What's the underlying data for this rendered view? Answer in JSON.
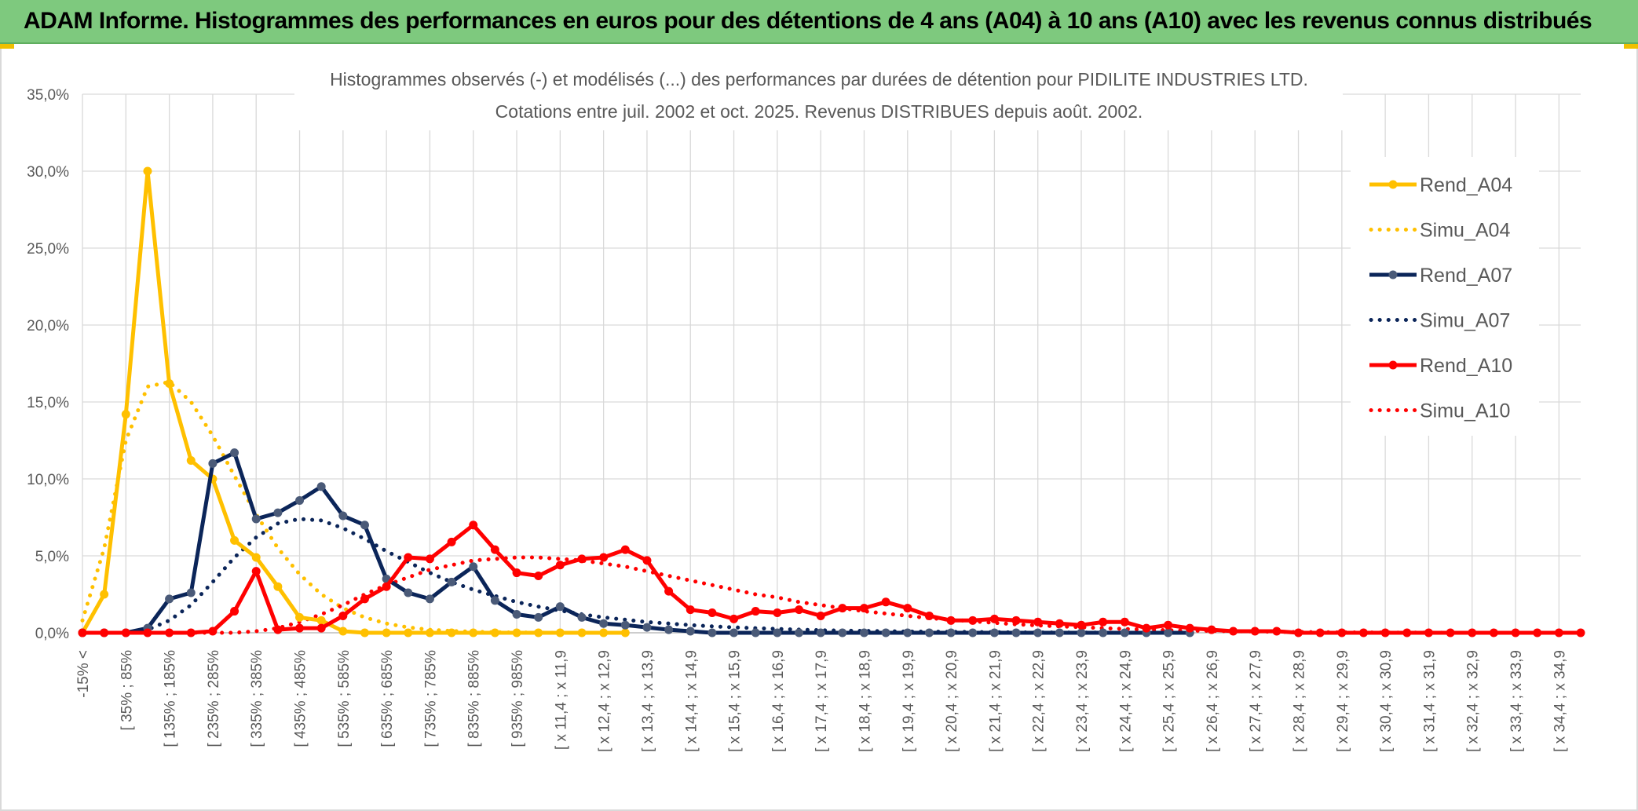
{
  "banner_title": "ADAM Informe. Histogrammes des performances en euros pour des détentions de 4 ans (A04) à 10 ans (A10) avec les revenus connus distribués",
  "chart_data": {
    "type": "line",
    "title_line1": "Histogrammes observés (-) et modélisés (...) des performances par durées de détention pour PIDILITE INDUSTRIES LTD.",
    "title_line2": "Cotations entre juil. 2002 et oct. 2025. Revenus DISTRIBUES depuis août. 2002.",
    "ylim": [
      0,
      35
    ],
    "y_ticks": [
      0,
      5,
      10,
      15,
      20,
      25,
      30,
      35
    ],
    "y_tick_labels": [
      "0,0%",
      "5,0%",
      "10,0%",
      "15,0%",
      "20,0%",
      "25,0%",
      "30,0%",
      "35,0%"
    ],
    "x_count": 70,
    "x_tick_labels": [
      {
        "index": 0,
        "label": "-15% <"
      },
      {
        "index": 2,
        "label": "[ 35% ; 85%"
      },
      {
        "index": 4,
        "label": "[ 135% ; 185%"
      },
      {
        "index": 6,
        "label": "[ 235% ; 285%"
      },
      {
        "index": 8,
        "label": "[ 335% ; 385%"
      },
      {
        "index": 10,
        "label": "[ 435% ; 485%"
      },
      {
        "index": 12,
        "label": "[ 535% ; 585%"
      },
      {
        "index": 14,
        "label": "[ 635% ; 685%"
      },
      {
        "index": 16,
        "label": "[ 735% ; 785%"
      },
      {
        "index": 18,
        "label": "[ 835% ; 885%"
      },
      {
        "index": 20,
        "label": "[ 935% ; 985%"
      },
      {
        "index": 22,
        "label": "[ x 11,4 ; x 11,9"
      },
      {
        "index": 24,
        "label": "[ x 12,4 ; x 12,9"
      },
      {
        "index": 26,
        "label": "[ x 13,4 ; x 13,9"
      },
      {
        "index": 28,
        "label": "[ x 14,4 ; x 14,9"
      },
      {
        "index": 30,
        "label": "[ x 15,4 ; x 15,9"
      },
      {
        "index": 32,
        "label": "[ x 16,4 ; x 16,9"
      },
      {
        "index": 34,
        "label": "[ x 17,4 ; x 17,9"
      },
      {
        "index": 36,
        "label": "[ x 18,4 ; x 18,9"
      },
      {
        "index": 38,
        "label": "[ x 19,4 ; x 19,9"
      },
      {
        "index": 40,
        "label": "[ x 20,4 ; x 20,9"
      },
      {
        "index": 42,
        "label": "[ x 21,4 ; x 21,9"
      },
      {
        "index": 44,
        "label": "[ x 22,4 ; x 22,9"
      },
      {
        "index": 46,
        "label": "[ x 23,4 ; x 23,9"
      },
      {
        "index": 48,
        "label": "[ x 24,4 ; x 24,9"
      },
      {
        "index": 50,
        "label": "[ x 25,4 ; x 25,9"
      },
      {
        "index": 52,
        "label": "[ x 26,4 ; x 26,9"
      },
      {
        "index": 54,
        "label": "[ x 27,4 ; x 27,9"
      },
      {
        "index": 56,
        "label": "[ x 28,4 ; x 28,9"
      },
      {
        "index": 58,
        "label": "[ x 29,4 ; x 29,9"
      },
      {
        "index": 60,
        "label": "[ x 30,4 ; x 30,9"
      },
      {
        "index": 62,
        "label": "[ x 31,4 ; x 31,9"
      },
      {
        "index": 64,
        "label": "[ x 32,4 ; x 32,9"
      },
      {
        "index": 66,
        "label": "[ x 33,4 ; x 33,9"
      },
      {
        "index": 68,
        "label": "[ x 34,4 ; x 34,9"
      }
    ],
    "series": [
      {
        "name": "Rend_A04",
        "color": "#FFC000",
        "style": "solid",
        "values": [
          0,
          2.5,
          14.2,
          30,
          16.2,
          11.2,
          10,
          6,
          4.9,
          3,
          1,
          0.8,
          0.1,
          0,
          0,
          0,
          0,
          0,
          0,
          0,
          0,
          0,
          0,
          0,
          0,
          0
        ]
      },
      {
        "name": "Simu_A04",
        "color": "#FFC000",
        "style": "dotted",
        "values": [
          0.8,
          5.5,
          12.5,
          16,
          16.3,
          15,
          12.8,
          10.2,
          7.7,
          5.5,
          3.8,
          2.5,
          1.6,
          1,
          0.6,
          0.35,
          0.2,
          0.12,
          0.07,
          0.04,
          0.02,
          0.01,
          0,
          0,
          0,
          0
        ]
      },
      {
        "name": "Rend_A07",
        "color": "#0B2559",
        "style": "solid",
        "values": [
          0,
          0,
          0,
          0.3,
          2.2,
          2.6,
          11,
          11.7,
          7.4,
          7.8,
          8.6,
          9.5,
          7.6,
          7,
          3.5,
          2.6,
          2.2,
          3.3,
          4.3,
          2.1,
          1.2,
          1,
          1.7,
          1,
          0.6,
          0.5,
          0.35,
          0.2,
          0.1,
          0,
          0,
          0,
          0,
          0,
          0,
          0,
          0,
          0,
          0,
          0,
          0,
          0,
          0,
          0,
          0,
          0,
          0,
          0,
          0,
          0,
          0,
          0
        ]
      },
      {
        "name": "Simu_A07",
        "color": "#0B2559",
        "style": "dotted",
        "values": [
          0,
          0,
          0,
          0.2,
          0.8,
          1.8,
          3.3,
          4.9,
          6.2,
          7.1,
          7.4,
          7.3,
          6.8,
          6.1,
          5.3,
          4.6,
          3.9,
          3.3,
          2.8,
          2.4,
          2,
          1.7,
          1.45,
          1.2,
          1,
          0.85,
          0.7,
          0.6,
          0.5,
          0.42,
          0.35,
          0.3,
          0.25,
          0.21,
          0.17,
          0.14,
          0.12,
          0.1,
          0.08,
          0.07,
          0.06,
          0.05,
          0.04,
          0.03,
          0.02,
          0.02,
          0.01,
          0.01,
          0,
          0,
          0,
          0
        ]
      },
      {
        "name": "Rend_A10",
        "color": "#FF0000",
        "style": "solid",
        "values": [
          0,
          0,
          0,
          0,
          0,
          0,
          0.1,
          1.4,
          4,
          0.2,
          0.3,
          0.3,
          1.1,
          2.2,
          3.0,
          4.9,
          4.8,
          5.9,
          7,
          5.4,
          3.9,
          3.7,
          4.4,
          4.8,
          4.9,
          5.4,
          4.7,
          2.7,
          1.5,
          1.3,
          0.9,
          1.4,
          1.3,
          1.5,
          1.1,
          1.6,
          1.6,
          2.0,
          1.6,
          1.1,
          0.8,
          0.8,
          0.9,
          0.8,
          0.7,
          0.6,
          0.5,
          0.7,
          0.7,
          0.3,
          0.5,
          0.3,
          0.2,
          0.1,
          0.1,
          0.1,
          0,
          0,
          0,
          0,
          0,
          0,
          0,
          0,
          0,
          0,
          0,
          0,
          0,
          0
        ]
      },
      {
        "name": "Simu_A10",
        "color": "#FF0000",
        "style": "dotted",
        "values": [
          0,
          0,
          0,
          0,
          0,
          0,
          0,
          0,
          0.1,
          0.3,
          0.7,
          1.2,
          1.8,
          2.5,
          3.1,
          3.6,
          4.1,
          4.4,
          4.7,
          4.8,
          4.9,
          4.9,
          4.8,
          4.7,
          4.5,
          4.3,
          4.0,
          3.7,
          3.4,
          3.1,
          2.8,
          2.5,
          2.3,
          2.0,
          1.8,
          1.6,
          1.4,
          1.25,
          1.1,
          0.95,
          0.85,
          0.75,
          0.65,
          0.55,
          0.48,
          0.42,
          0.36,
          0.3,
          0.25,
          0.21,
          0.17,
          0.14,
          0.12,
          0.1,
          0.08,
          0.06,
          0.05,
          0.04,
          0.03,
          0.02,
          0.02,
          0.01,
          0.01,
          0,
          0,
          0,
          0,
          0,
          0,
          0
        ]
      }
    ]
  }
}
